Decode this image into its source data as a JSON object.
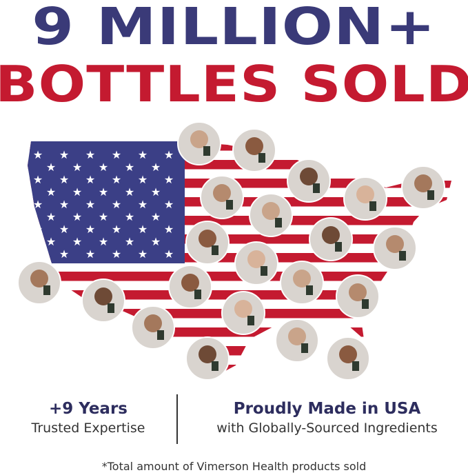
{
  "headline": {
    "line1": "9 MILLION+",
    "line2": "BOTTLES SOLD"
  },
  "colors": {
    "navy": "#3a3a78",
    "red": "#c41a30",
    "flag_blue": "#3b3f86"
  },
  "map": {
    "image": "US map in flag pattern with customer photo circles holding Vimerson Health bottles"
  },
  "stats": [
    {
      "title": "+9 Years",
      "subtitle": "Trusted Expertise"
    },
    {
      "title": "Proudly Made in USA",
      "subtitle": "with Globally-Sourced Ingredients"
    }
  ],
  "footnote": "*Total amount of Vimerson Health products sold"
}
